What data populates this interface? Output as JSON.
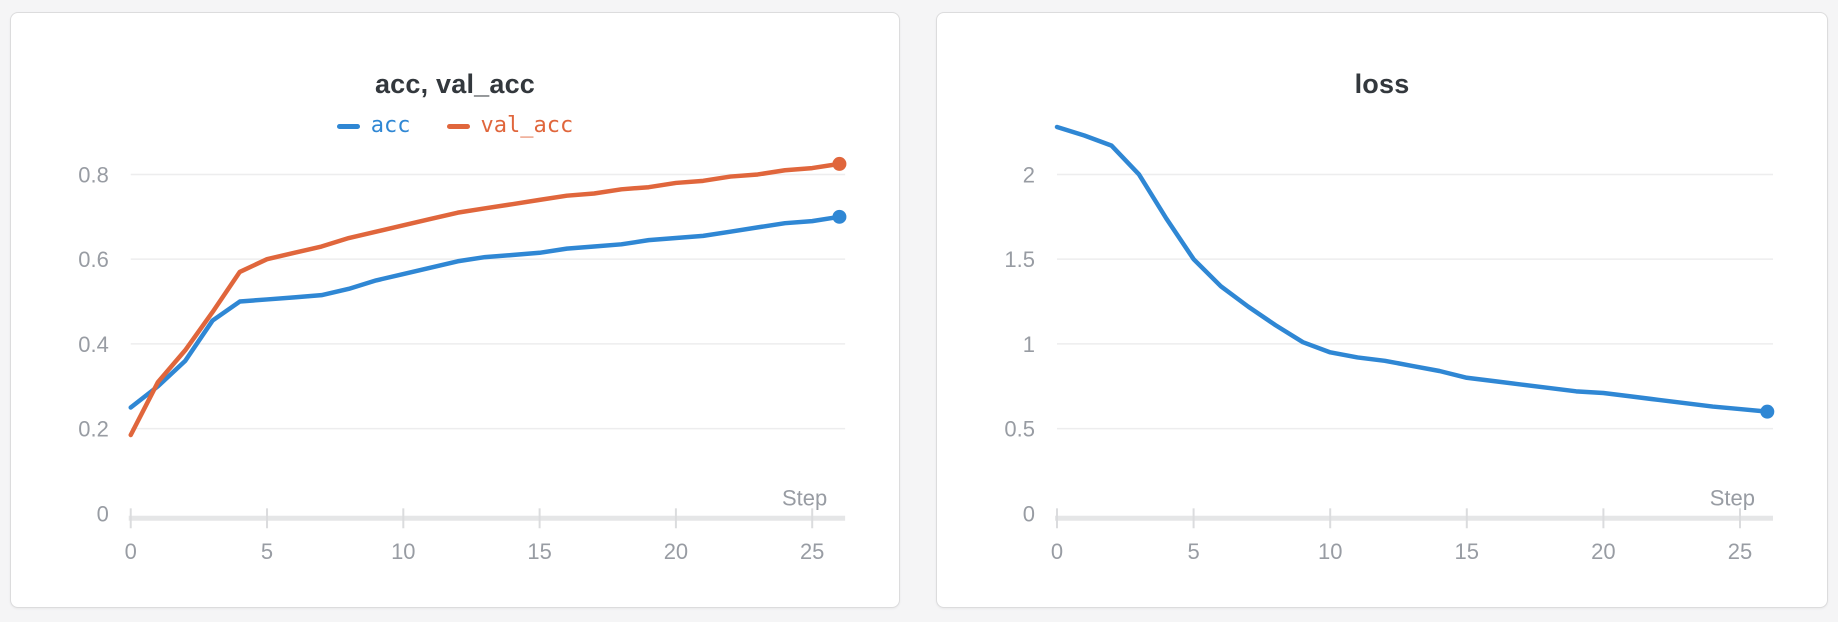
{
  "chart_data": [
    {
      "type": "line",
      "title": "acc, val_acc",
      "xlabel": "Step",
      "x": [
        0,
        1,
        2,
        3,
        4,
        5,
        6,
        7,
        8,
        9,
        10,
        11,
        12,
        13,
        14,
        15,
        16,
        17,
        18,
        19,
        20,
        21,
        22,
        23,
        24,
        25,
        26
      ],
      "xticks": [
        0,
        5,
        10,
        15,
        20,
        25
      ],
      "yticks": [
        0,
        0.2,
        0.4,
        0.6,
        0.8
      ],
      "xlim": [
        0,
        26
      ],
      "ylim": [
        0,
        0.9
      ],
      "grid": "horizontal",
      "legend_position": "top",
      "series": [
        {
          "name": "acc",
          "color": "#2f87d4",
          "values": [
            0.25,
            0.3,
            0.36,
            0.455,
            0.5,
            0.505,
            0.51,
            0.515,
            0.53,
            0.55,
            0.565,
            0.58,
            0.595,
            0.605,
            0.61,
            0.615,
            0.625,
            0.63,
            0.635,
            0.645,
            0.65,
            0.655,
            0.665,
            0.675,
            0.685,
            0.69,
            0.7
          ]
        },
        {
          "name": "val_acc",
          "color": "#e0663c",
          "values": [
            0.185,
            0.31,
            0.385,
            0.475,
            0.57,
            0.6,
            0.615,
            0.63,
            0.65,
            0.665,
            0.68,
            0.695,
            0.71,
            0.72,
            0.73,
            0.74,
            0.75,
            0.755,
            0.765,
            0.77,
            0.78,
            0.785,
            0.795,
            0.8,
            0.81,
            0.815,
            0.825
          ]
        }
      ]
    },
    {
      "type": "line",
      "title": "loss",
      "xlabel": "Step",
      "x": [
        0,
        1,
        2,
        3,
        4,
        5,
        6,
        7,
        8,
        9,
        10,
        11,
        12,
        13,
        14,
        15,
        16,
        17,
        18,
        19,
        20,
        21,
        22,
        23,
        24,
        25,
        26
      ],
      "xticks": [
        0,
        5,
        10,
        15,
        20,
        25
      ],
      "yticks": [
        0,
        0.5,
        1,
        1.5,
        2
      ],
      "xlim": [
        0,
        26
      ],
      "ylim": [
        0,
        2.4
      ],
      "grid": "horizontal",
      "legend_position": "none",
      "series": [
        {
          "name": "loss",
          "color": "#2f87d4",
          "values": [
            2.28,
            2.23,
            2.17,
            2.0,
            1.74,
            1.5,
            1.34,
            1.22,
            1.11,
            1.01,
            0.95,
            0.92,
            0.9,
            0.87,
            0.84,
            0.8,
            0.78,
            0.76,
            0.74,
            0.72,
            0.71,
            0.69,
            0.67,
            0.65,
            0.63,
            0.615,
            0.6
          ]
        }
      ]
    }
  ]
}
